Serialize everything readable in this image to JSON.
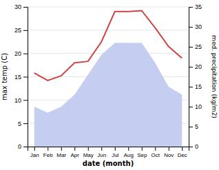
{
  "chart_data": {
    "type": "line",
    "xlabel": "date (month)",
    "ylabel": "max temp (C)",
    "y2label": "med. precipitation (kg/m2)",
    "categories": [
      "Jan",
      "Feb",
      "Mar",
      "Apr",
      "May",
      "Jun",
      "Jul",
      "Aug",
      "Sep",
      "Oct",
      "Nov",
      "Dec"
    ],
    "series": [
      {
        "type": "area",
        "axis": "y2",
        "color": "#c5cef0",
        "values": [
          10.0,
          8.5,
          10.0,
          13.0,
          18.0,
          23.0,
          26.0,
          26.0,
          26.0,
          21.0,
          15.0,
          13.0
        ]
      },
      {
        "type": "line",
        "color": "#cc4444",
        "values": [
          15.8,
          14.2,
          15.2,
          18.0,
          18.3,
          22.5,
          29.0,
          29.0,
          29.2,
          25.5,
          21.5,
          19.0
        ]
      }
    ],
    "ylim": [
      0,
      30
    ],
    "yticks": [
      0,
      5,
      10,
      15,
      20,
      25,
      30
    ],
    "y2lim": [
      0,
      35
    ],
    "y2ticks": [
      0,
      5,
      10,
      15,
      20,
      25,
      30,
      35
    ],
    "grid": true
  }
}
